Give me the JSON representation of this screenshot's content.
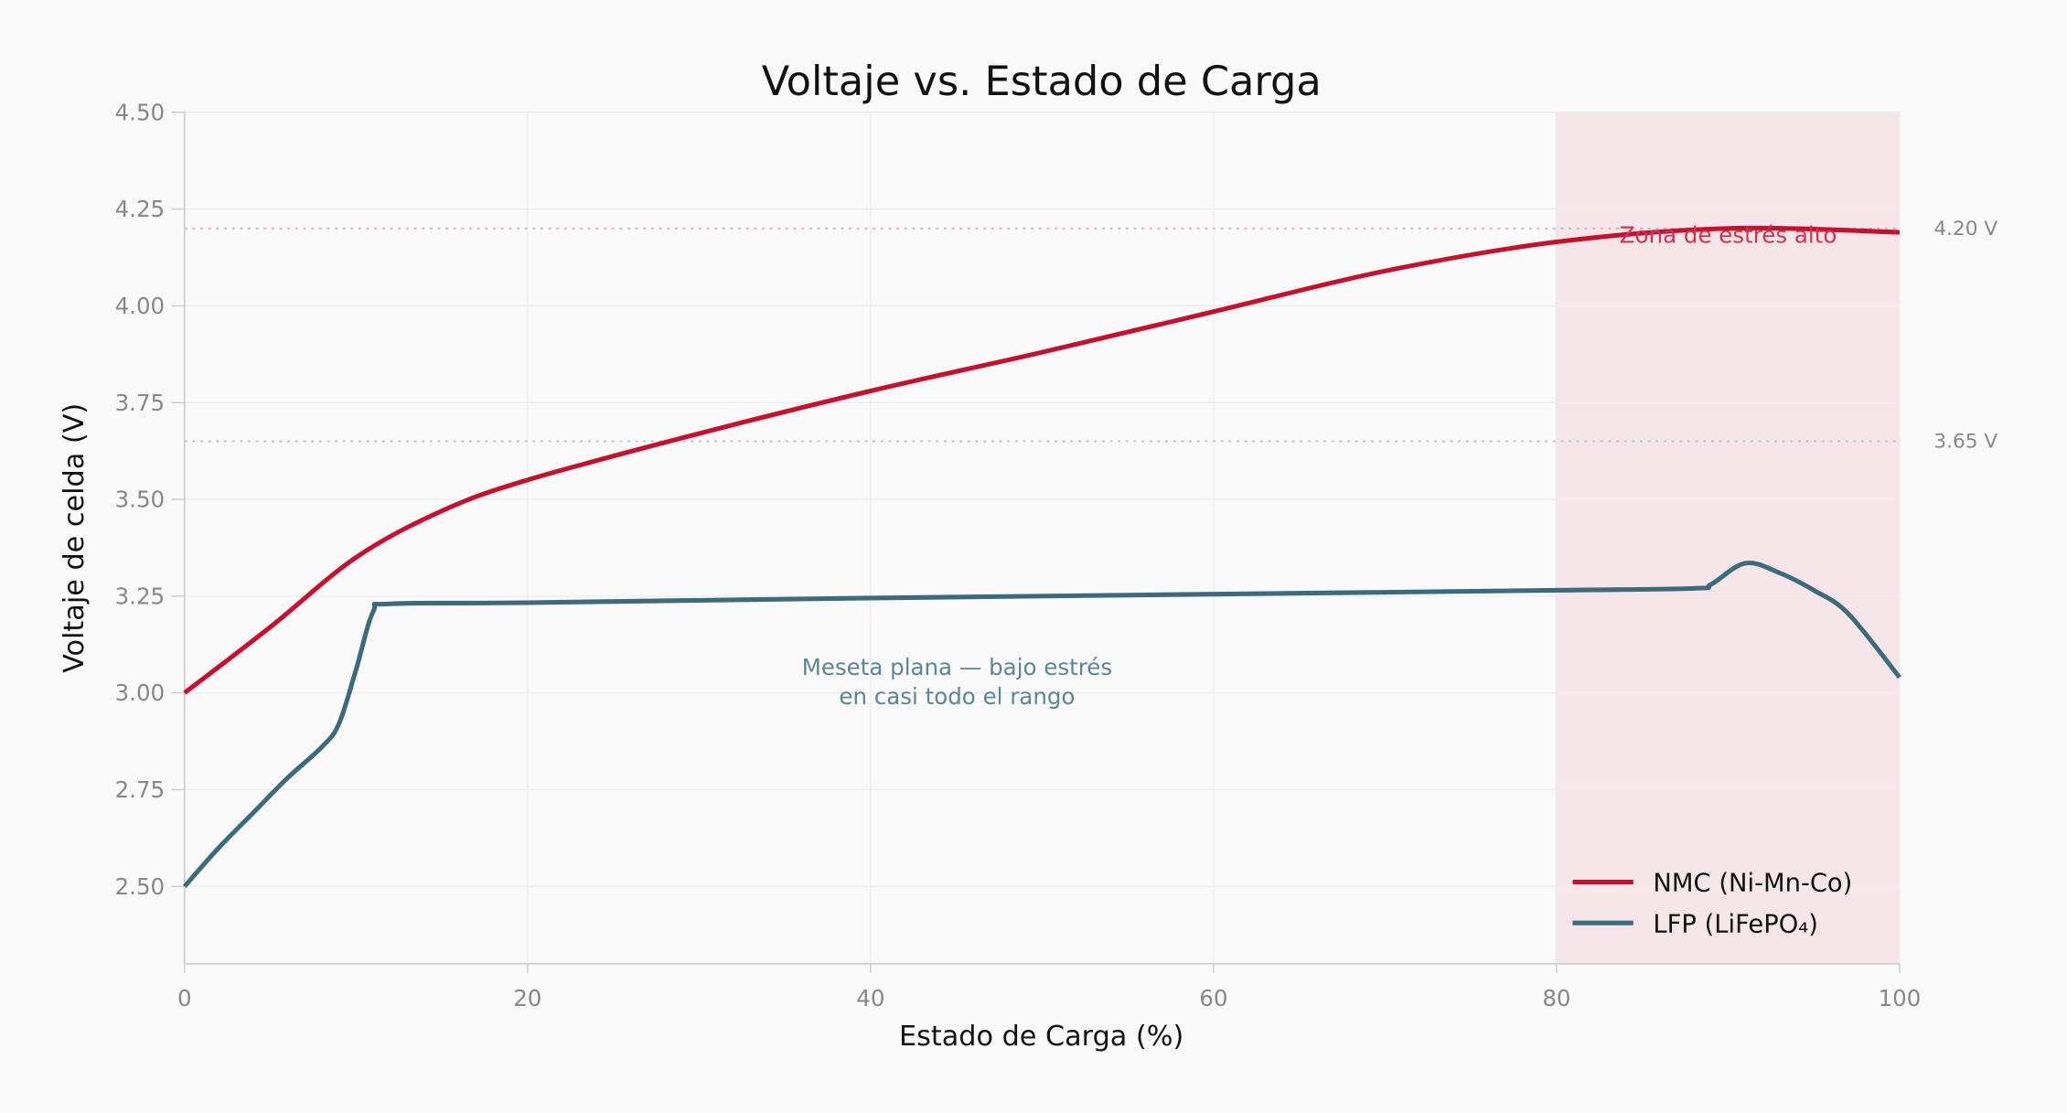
{
  "chart_data": {
    "type": "line",
    "title": "Voltaje vs. Estado de Carga",
    "xlabel": "Estado de Carga  (%)",
    "ylabel": "Voltaje de celda  (V)",
    "xlim": [
      0,
      100
    ],
    "ylim": [
      2.3,
      4.5
    ],
    "xticks": [
      "0",
      "20",
      "40",
      "60",
      "80",
      "100"
    ],
    "yticks": [
      "2.50",
      "2.75",
      "3.00",
      "3.25",
      "3.50",
      "3.75",
      "4.00",
      "4.25",
      "4.50"
    ],
    "grid": true,
    "legend_position": "bottom-right",
    "series": [
      {
        "name": "NMC (Ni-Mn-Co)",
        "color": "#C8102E",
        "x": [
          0,
          5,
          10,
          15,
          20,
          30,
          40,
          50,
          60,
          70,
          80,
          90,
          100
        ],
        "y": [
          3.0,
          3.17,
          3.35,
          3.47,
          3.55,
          3.67,
          3.78,
          3.88,
          3.985,
          4.09,
          4.165,
          4.2,
          4.19
        ]
      },
      {
        "name": "LFP (LiFePO₄)",
        "color": "#3D6B7D",
        "x": [
          0,
          2,
          4,
          6,
          8,
          9,
          10,
          11,
          12,
          20,
          40,
          60,
          80,
          88,
          89,
          91,
          93,
          95,
          97,
          100
        ],
        "y": [
          2.5,
          2.6,
          2.69,
          2.78,
          2.86,
          2.92,
          3.06,
          3.21,
          3.23,
          3.233,
          3.245,
          3.255,
          3.265,
          3.27,
          3.28,
          3.335,
          3.31,
          3.265,
          3.205,
          3.04
        ]
      }
    ],
    "reference_lines": [
      {
        "value": 4.2,
        "label": "4.20 V",
        "color": "#E8A0AC"
      },
      {
        "value": 3.65,
        "label": "3.65 V",
        "color": "#A9C3CC"
      }
    ],
    "shaded_region": {
      "x": [
        80,
        100
      ],
      "color": "#F6E6E9",
      "label": "Zona de estrés alto",
      "label_color": "#D0334F"
    },
    "annotations": [
      {
        "lines": [
          "Meseta plana — bajo estrés",
          "en casi todo el rango"
        ],
        "x": 45,
        "y": 3.03,
        "color": "#5C8596"
      }
    ]
  }
}
